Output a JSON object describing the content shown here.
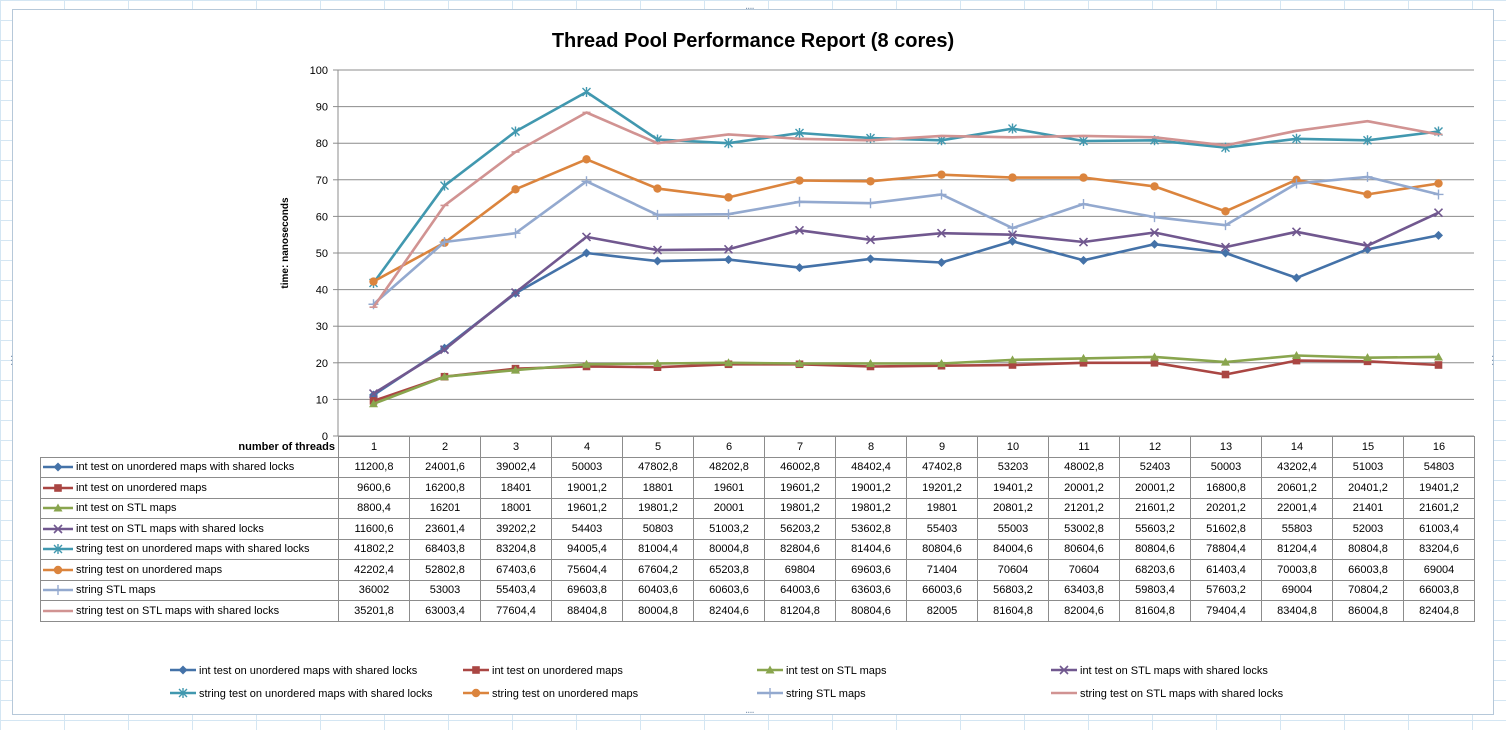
{
  "chart_data": {
    "type": "line",
    "title": "Thread Pool Performance Report (8 cores)",
    "ylabel": "time: nanoseconds",
    "xlabel": "number of threads",
    "ylim": [
      0,
      100
    ],
    "yticks": [
      0,
      10,
      20,
      30,
      40,
      50,
      60,
      70,
      80,
      90,
      100
    ],
    "grid": true,
    "legend_position": "bottom",
    "categories": [
      "1",
      "2",
      "3",
      "4",
      "5",
      "6",
      "7",
      "8",
      "9",
      "10",
      "11",
      "12",
      "13",
      "14",
      "15",
      "16"
    ],
    "series": [
      {
        "name": "int test on unordered maps with shared locks",
        "color": "#4472a8",
        "marker": "diamond",
        "values": [
          11.2,
          24.0,
          39.0,
          50.0,
          47.8,
          48.2,
          46.0,
          48.4,
          47.4,
          53.2,
          48.0,
          52.4,
          50.0,
          43.2,
          51.0,
          54.8
        ],
        "labels": [
          "11200,8",
          "24001,6",
          "39002,4",
          "50003",
          "47802,8",
          "48202,8",
          "46002,8",
          "48402,4",
          "47402,8",
          "53203",
          "48002,8",
          "52403",
          "50003",
          "43202,4",
          "51003",
          "54803"
        ]
      },
      {
        "name": "int test on unordered maps",
        "color": "#aa4643",
        "marker": "square",
        "values": [
          9.6,
          16.2,
          18.4,
          19.0,
          18.8,
          19.6,
          19.6,
          19.0,
          19.2,
          19.4,
          20.0,
          20.0,
          16.8,
          20.6,
          20.4,
          19.4
        ],
        "labels": [
          "9600,6",
          "16200,8",
          "18401",
          "19001,2",
          "18801",
          "19601",
          "19601,2",
          "19001,2",
          "19201,2",
          "19401,2",
          "20001,2",
          "20001,2",
          "16800,8",
          "20601,2",
          "20401,2",
          "19401,2"
        ]
      },
      {
        "name": "int test on STL  maps",
        "color": "#89a54e",
        "marker": "triangle",
        "values": [
          8.8,
          16.2,
          18.0,
          19.6,
          19.8,
          20.0,
          19.8,
          19.8,
          19.8,
          20.8,
          21.2,
          21.6,
          20.2,
          22.0,
          21.4,
          21.6
        ],
        "labels": [
          "8800,4",
          "16201",
          "18001",
          "19601,2",
          "19801,2",
          "20001",
          "19801,2",
          "19801,2",
          "19801",
          "20801,2",
          "21201,2",
          "21601,2",
          "20201,2",
          "22001,4",
          "21401",
          "21601,2"
        ]
      },
      {
        "name": "int test on STL maps with shared locks",
        "color": "#71588f",
        "marker": "x",
        "values": [
          11.6,
          23.6,
          39.2,
          54.4,
          50.8,
          51.0,
          56.2,
          53.6,
          55.4,
          55.0,
          53.0,
          55.6,
          51.6,
          55.8,
          52.0,
          61.0
        ],
        "labels": [
          "11600,6",
          "23601,4",
          "39202,2",
          "54403",
          "50803",
          "51003,2",
          "56203,2",
          "53602,8",
          "55403",
          "55003",
          "53002,8",
          "55603,2",
          "51602,8",
          "55803",
          "52003",
          "61003,4"
        ]
      },
      {
        "name": "string test on unordered maps with  shared locks",
        "color": "#4198af",
        "marker": "star",
        "values": [
          41.8,
          68.4,
          83.2,
          94.0,
          81.0,
          80.0,
          82.8,
          81.4,
          80.8,
          84.0,
          80.6,
          80.8,
          78.8,
          81.2,
          80.8,
          83.2
        ],
        "labels": [
          "41802,2",
          "68403,8",
          "83204,8",
          "94005,4",
          "81004,4",
          "80004,8",
          "82804,6",
          "81404,6",
          "80804,6",
          "84004,6",
          "80604,6",
          "80804,6",
          "78804,4",
          "81204,4",
          "80804,8",
          "83204,6"
        ]
      },
      {
        "name": "string test on unordered maps",
        "color": "#db843d",
        "marker": "circle",
        "values": [
          42.2,
          52.8,
          67.4,
          75.6,
          67.6,
          65.2,
          69.8,
          69.6,
          71.4,
          70.6,
          70.6,
          68.2,
          61.4,
          70.0,
          66.0,
          69.0
        ],
        "labels": [
          "42202,4",
          "52802,8",
          "67403,6",
          "75604,4",
          "67604,2",
          "65203,8",
          "69804",
          "69603,6",
          "71404",
          "70604",
          "70604",
          "68203,6",
          "61403,4",
          "70003,8",
          "66003,8",
          "69004"
        ]
      },
      {
        "name": "string STL maps",
        "color": "#93a9cf",
        "marker": "plus",
        "values": [
          36.0,
          53.0,
          55.4,
          69.6,
          60.4,
          60.6,
          64.0,
          63.6,
          66.0,
          56.8,
          63.4,
          59.8,
          57.6,
          69.0,
          70.8,
          66.0
        ],
        "labels": [
          "36002",
          "53003",
          "55403,4",
          "69603,8",
          "60403,6",
          "60603,6",
          "64003,6",
          "63603,6",
          "66003,6",
          "56803,2",
          "63403,8",
          "59803,4",
          "57603,2",
          "69004",
          "70804,2",
          "66003,8"
        ]
      },
      {
        "name": "string test on STL maps with shared locks",
        "color": "#d19392",
        "marker": "dash",
        "values": [
          35.2,
          63.0,
          77.6,
          88.4,
          80.0,
          82.4,
          81.2,
          80.8,
          82.0,
          81.6,
          82.0,
          81.6,
          79.4,
          83.4,
          86.0,
          82.4
        ],
        "labels": [
          "35201,8",
          "63003,4",
          "77604,4",
          "88404,8",
          "80004,8",
          "82404,6",
          "81204,8",
          "80804,6",
          "82005",
          "81604,8",
          "82004,6",
          "81604,8",
          "79404,4",
          "83404,8",
          "86004,8",
          "82404,8"
        ]
      }
    ]
  }
}
